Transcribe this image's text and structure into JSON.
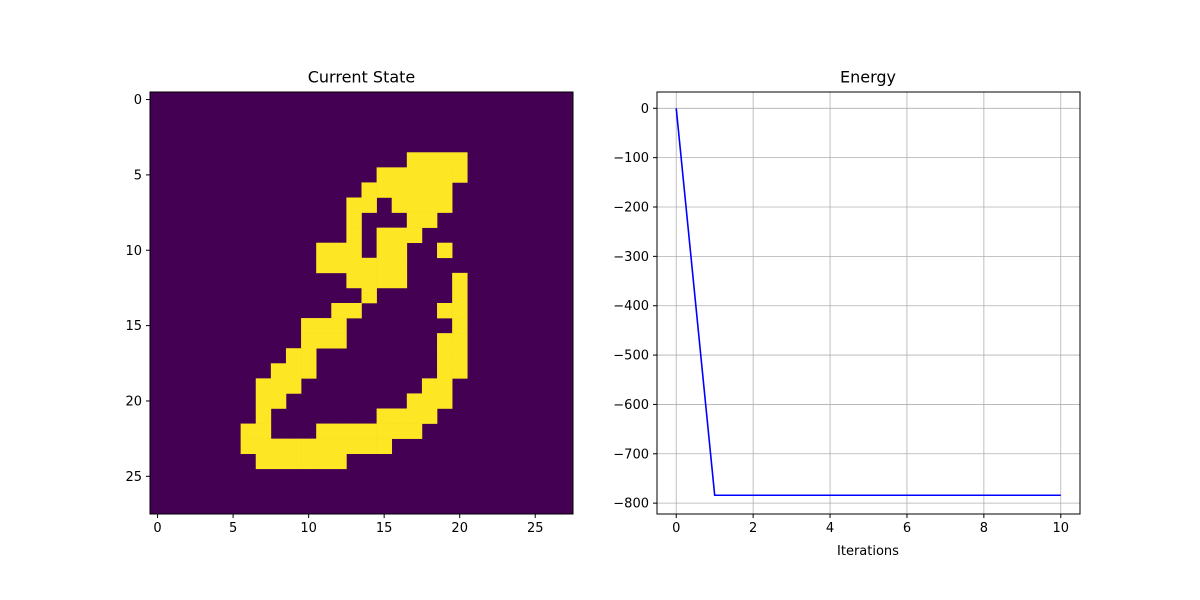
{
  "chart_data": [
    {
      "type": "heatmap",
      "title": "Current State",
      "xlabel": "",
      "ylabel": "",
      "shape": [
        28,
        28
      ],
      "x_ticks": [
        0,
        5,
        10,
        15,
        20,
        25
      ],
      "y_ticks": [
        0,
        5,
        10,
        15,
        20,
        25
      ],
      "x_tick_labels": [
        "0",
        "5",
        "10",
        "15",
        "20",
        "25"
      ],
      "y_tick_labels": [
        "0",
        "5",
        "10",
        "15",
        "20",
        "25"
      ],
      "grid": false,
      "colormap": "viridis",
      "colors": {
        "low": "#440154",
        "high": "#fde725"
      },
      "active_cells": [
        [
          4,
          17
        ],
        [
          4,
          18
        ],
        [
          4,
          19
        ],
        [
          4,
          20
        ],
        [
          5,
          15
        ],
        [
          5,
          16
        ],
        [
          5,
          17
        ],
        [
          5,
          18
        ],
        [
          5,
          19
        ],
        [
          5,
          20
        ],
        [
          6,
          14
        ],
        [
          6,
          15
        ],
        [
          6,
          16
        ],
        [
          6,
          17
        ],
        [
          6,
          18
        ],
        [
          6,
          19
        ],
        [
          7,
          13
        ],
        [
          7,
          14
        ],
        [
          7,
          16
        ],
        [
          7,
          17
        ],
        [
          7,
          18
        ],
        [
          7,
          19
        ],
        [
          8,
          13
        ],
        [
          8,
          17
        ],
        [
          8,
          18
        ],
        [
          9,
          13
        ],
        [
          9,
          15
        ],
        [
          9,
          16
        ],
        [
          9,
          17
        ],
        [
          10,
          11
        ],
        [
          10,
          12
        ],
        [
          10,
          13
        ],
        [
          10,
          15
        ],
        [
          10,
          16
        ],
        [
          10,
          19
        ],
        [
          11,
          11
        ],
        [
          11,
          12
        ],
        [
          11,
          13
        ],
        [
          11,
          14
        ],
        [
          11,
          15
        ],
        [
          11,
          16
        ],
        [
          12,
          13
        ],
        [
          12,
          14
        ],
        [
          12,
          15
        ],
        [
          12,
          16
        ],
        [
          12,
          20
        ],
        [
          13,
          14
        ],
        [
          13,
          20
        ],
        [
          14,
          12
        ],
        [
          14,
          13
        ],
        [
          14,
          19
        ],
        [
          14,
          20
        ],
        [
          15,
          10
        ],
        [
          15,
          11
        ],
        [
          15,
          12
        ],
        [
          15,
          20
        ],
        [
          16,
          10
        ],
        [
          16,
          11
        ],
        [
          16,
          12
        ],
        [
          16,
          19
        ],
        [
          16,
          20
        ],
        [
          17,
          9
        ],
        [
          17,
          10
        ],
        [
          17,
          19
        ],
        [
          17,
          20
        ],
        [
          18,
          8
        ],
        [
          18,
          9
        ],
        [
          18,
          10
        ],
        [
          18,
          19
        ],
        [
          18,
          20
        ],
        [
          19,
          7
        ],
        [
          19,
          8
        ],
        [
          19,
          9
        ],
        [
          19,
          18
        ],
        [
          19,
          19
        ],
        [
          20,
          7
        ],
        [
          20,
          8
        ],
        [
          20,
          17
        ],
        [
          20,
          18
        ],
        [
          20,
          19
        ],
        [
          21,
          7
        ],
        [
          21,
          15
        ],
        [
          21,
          16
        ],
        [
          21,
          17
        ],
        [
          21,
          18
        ],
        [
          22,
          6
        ],
        [
          22,
          7
        ],
        [
          22,
          11
        ],
        [
          22,
          12
        ],
        [
          22,
          13
        ],
        [
          22,
          14
        ],
        [
          22,
          15
        ],
        [
          22,
          16
        ],
        [
          22,
          17
        ],
        [
          23,
          6
        ],
        [
          23,
          7
        ],
        [
          23,
          8
        ],
        [
          23,
          9
        ],
        [
          23,
          10
        ],
        [
          23,
          11
        ],
        [
          23,
          12
        ],
        [
          23,
          13
        ],
        [
          23,
          14
        ],
        [
          23,
          15
        ],
        [
          24,
          7
        ],
        [
          24,
          8
        ],
        [
          24,
          9
        ],
        [
          24,
          10
        ],
        [
          24,
          11
        ],
        [
          24,
          12
        ]
      ]
    },
    {
      "type": "line",
      "title": "Energy",
      "xlabel": "Iterations",
      "ylabel": "",
      "x": [
        0,
        1,
        2,
        3,
        4,
        5,
        6,
        7,
        8,
        9,
        10
      ],
      "series": [
        {
          "values": [
            0,
            -784,
            -784,
            -784,
            -784,
            -784,
            -784,
            -784,
            -784,
            -784,
            -784
          ],
          "color": "#0000ff"
        }
      ],
      "xlim": [
        -0.5,
        10.5
      ],
      "ylim": [
        -822,
        33
      ],
      "x_ticks": [
        0,
        2,
        4,
        6,
        8,
        10
      ],
      "y_ticks": [
        0,
        -100,
        -200,
        -300,
        -400,
        -500,
        -600,
        -700,
        -800
      ],
      "x_tick_labels": [
        "0",
        "2",
        "4",
        "6",
        "8",
        "10"
      ],
      "y_tick_labels": [
        "0",
        "−100",
        "−200",
        "−300",
        "−400",
        "−500",
        "−600",
        "−700",
        "−800"
      ],
      "grid": true
    }
  ]
}
